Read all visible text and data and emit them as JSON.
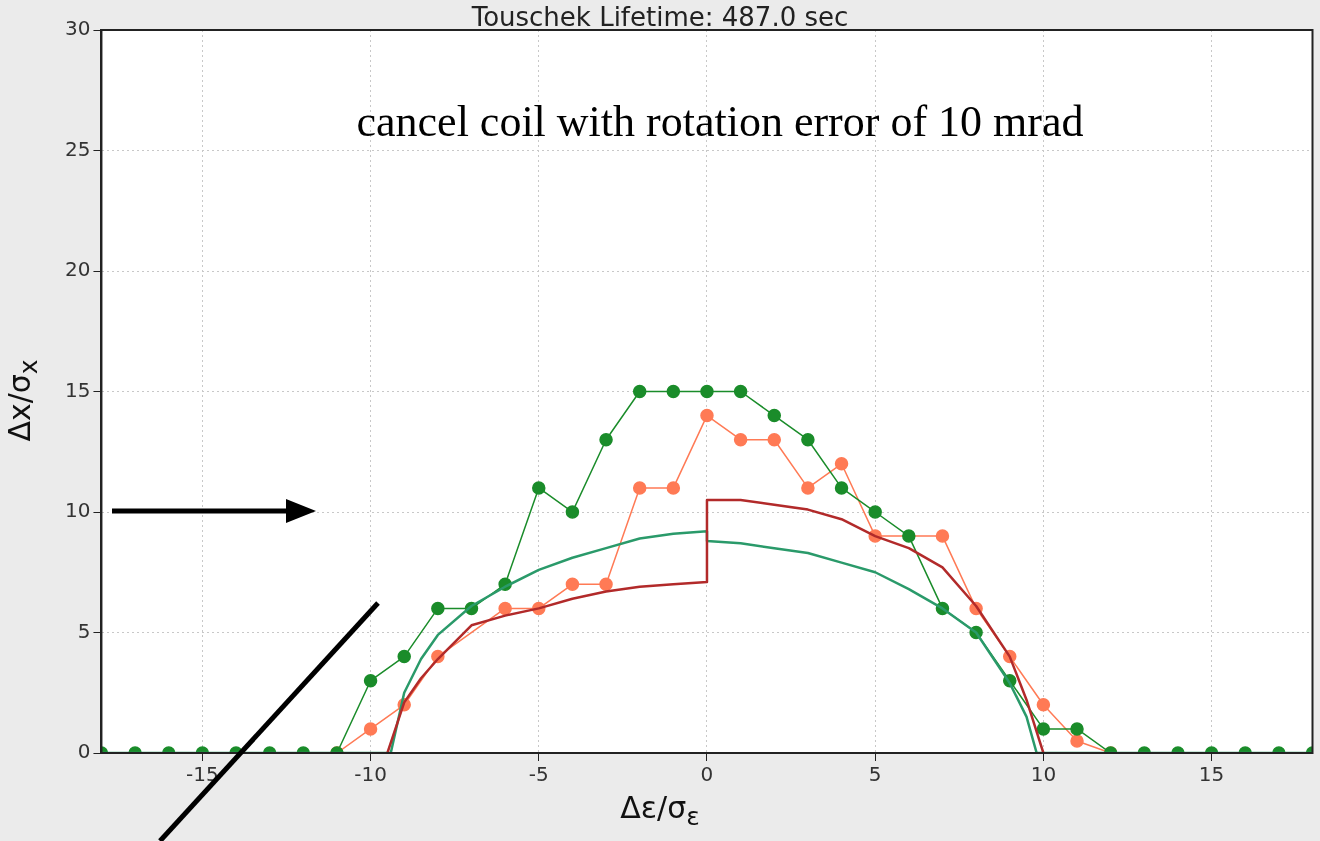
{
  "chart_data": {
    "type": "line",
    "title": "Touschek Lifetime: 487.0 sec",
    "xlabel": "Δε/σ$_{ε}$",
    "ylabel": "Δx/σ$_{x}$",
    "xlim": [
      -18,
      18
    ],
    "xticks": [
      -15,
      -10,
      -5,
      0,
      5,
      10,
      15
    ],
    "ylim": [
      0,
      30
    ],
    "yticks": [
      0,
      5,
      10,
      15,
      20,
      25,
      30
    ],
    "grid": true,
    "legend": false,
    "annotations": [
      "cancel coil with rotation error of 10 mrad"
    ],
    "series": [
      {
        "color": "#ff7a55",
        "marker": "circle",
        "x": [
          -11,
          -10,
          -9,
          -8,
          -7,
          -6,
          -5,
          -4,
          -3,
          -2,
          -1,
          0,
          1,
          2,
          3,
          4,
          5,
          6,
          7,
          8,
          9,
          10,
          11,
          12
        ],
        "values": [
          0,
          1,
          2,
          4,
          null,
          6,
          6,
          7,
          7,
          11,
          11,
          14,
          13,
          13,
          11,
          12,
          9,
          null,
          9,
          6,
          4,
          2,
          0.5,
          0
        ]
      },
      {
        "color": "#1a8c2a",
        "marker": "circle",
        "x": [
          -18,
          -17,
          -16,
          -15,
          -14,
          -13,
          -12,
          -11,
          -10,
          -9,
          -8,
          -7,
          -6,
          -5,
          -4,
          -3,
          -2,
          -1,
          0,
          1,
          2,
          3,
          4,
          5,
          6,
          7,
          8,
          9,
          10,
          11,
          12,
          13,
          14,
          15,
          16,
          17,
          18
        ],
        "values": [
          0,
          0,
          0,
          0,
          0,
          0,
          0,
          0,
          3,
          4,
          6,
          6,
          7,
          11,
          10,
          13,
          15,
          15,
          15,
          15,
          14,
          13,
          11,
          10,
          9,
          6,
          5,
          3,
          1,
          1,
          0,
          0,
          0,
          0,
          0,
          0,
          0
        ]
      },
      {
        "color": "#2a9a6a",
        "marker": "none",
        "x": [
          -18,
          -9.4,
          -9,
          -8.5,
          -8,
          -7,
          -6,
          -5,
          -4,
          -3,
          -2,
          -1,
          0,
          0,
          1,
          2,
          3,
          4,
          5,
          6,
          7,
          8,
          9,
          9.5,
          9.8,
          18
        ],
        "values": [
          0,
          0,
          2.5,
          3.9,
          4.9,
          6.1,
          6.9,
          7.6,
          8.1,
          8.5,
          8.9,
          9.1,
          9.2,
          8.8,
          8.7,
          8.5,
          8.3,
          7.9,
          7.5,
          6.8,
          6.0,
          5.0,
          2.9,
          1.5,
          0,
          0
        ]
      },
      {
        "color": "#b22a2a",
        "marker": "none",
        "x": [
          -9.5,
          -9,
          -8.5,
          -8,
          -7,
          -6,
          -5,
          -4,
          -3,
          -2,
          -1,
          0,
          0,
          1,
          2,
          3,
          4,
          5,
          6,
          7,
          8,
          9,
          9.5,
          10
        ],
        "values": [
          0,
          2.1,
          3.1,
          3.9,
          5.3,
          5.7,
          6.0,
          6.4,
          6.7,
          6.9,
          7.0,
          7.1,
          10.5,
          10.5,
          10.3,
          10.1,
          9.7,
          9.0,
          8.5,
          7.7,
          6.1,
          4.0,
          2.2,
          0
        ]
      }
    ]
  }
}
